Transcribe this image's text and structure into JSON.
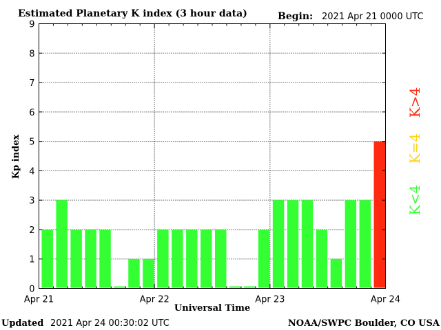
{
  "header": {
    "title": "Estimated Planetary K index (3 hour data)",
    "begin_label": "Begin:",
    "begin_value": "2021 Apr 21 0000 UTC"
  },
  "footer": {
    "updated_label": "Updated",
    "updated_value": "2021 Apr 24 00:30:02 UTC",
    "source": "NOAA/SWPC Boulder, CO USA"
  },
  "legend": {
    "below": "K<4",
    "equal": "K=4",
    "above": "K>4"
  },
  "colors": {
    "below": "#33ff33",
    "equal": "#ffd21a",
    "above": "#ff2a10"
  },
  "chart_data": {
    "type": "bar",
    "title": "Estimated Planetary K index (3 hour data)",
    "xlabel": "Universal Time",
    "ylabel": "Kp index",
    "ylim": [
      0,
      9
    ],
    "yticks": [
      0,
      1,
      2,
      3,
      4,
      5,
      6,
      7,
      8,
      9
    ],
    "xticks": [
      "Apr 21",
      "Apr 22",
      "Apr 23",
      "Apr 24"
    ],
    "grid": true,
    "values": [
      2,
      3,
      2,
      2,
      2,
      0.07,
      1,
      1,
      2,
      2,
      2,
      2,
      2,
      0.07,
      0.07,
      2,
      3,
      3,
      3,
      2,
      1,
      3,
      3,
      5
    ]
  }
}
